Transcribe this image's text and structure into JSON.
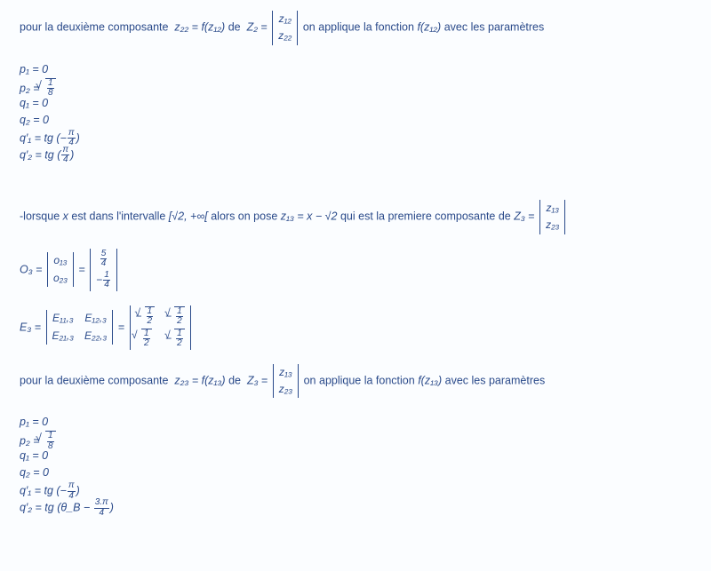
{
  "block1": {
    "intro_a": "pour la deuxième composante",
    "eq_comp": "z₂₂ = f(z₁₂)",
    "intro_b": "de",
    "Zname": "Z₂",
    "Zrows": [
      "z₁₂",
      "z₂₂"
    ],
    "intro_c": "on applique la fonction",
    "fcall": "f(z₁₂)",
    "intro_d": "avec les paramètres"
  },
  "params1": {
    "p1": "p₁ = 0",
    "p2_lhs": "p₂ =",
    "p2_frac": {
      "n": "1",
      "d": "8"
    },
    "q1": "q₁ = 0",
    "q2": "q₂ = 0",
    "q1p_lhs": "q′₁ = tg",
    "q1p_frac": {
      "neg": true,
      "n": "π",
      "d": "4"
    },
    "q2p_lhs": "q′₂ = tg",
    "q2p_frac": {
      "neg": false,
      "n": "π",
      "d": "4"
    }
  },
  "block2": {
    "intro_a": "-lorsque",
    "xvar": "x",
    "intro_b": "est dans l'intervalle",
    "interval_l": "√2, +∞",
    "intro_c": "alors on pose",
    "eq_z13": "z₁₃ = x − √2",
    "intro_d": "qui est la premiere composante de",
    "Zname": "Z₃",
    "Zrows": [
      "z₁₃",
      "z₂₃"
    ]
  },
  "O3": {
    "label": "O₃",
    "symrows": [
      "o₁₃",
      "o₂₃"
    ],
    "valrows_frac": [
      {
        "n": "5",
        "d": "4"
      },
      {
        "neg": true,
        "n": "1",
        "d": "4"
      }
    ]
  },
  "E3": {
    "label": "E₃",
    "symrows": [
      [
        "E₁₁,₃",
        "E₁₂,₃"
      ],
      [
        "E₂₁,₃",
        "E₂₂,₃"
      ]
    ],
    "valrows": [
      [
        {
          "neg": true,
          "n": "1",
          "d": "2"
        },
        {
          "neg": true,
          "n": "1",
          "d": "2"
        }
      ],
      [
        {
          "neg": false,
          "n": "1",
          "d": "2"
        },
        {
          "neg": true,
          "n": "1",
          "d": "2"
        }
      ]
    ]
  },
  "block3": {
    "intro_a": "pour la deuxième composante",
    "eq_comp": "z₂₃ = f(z₁₃)",
    "intro_b": "de",
    "Zname": "Z₃",
    "Zrows": [
      "z₁₃",
      "z₂₃"
    ],
    "intro_c": "on applique la fonction",
    "fcall": "f(z₁₃)",
    "intro_d": "avec les paramètres"
  },
  "params2": {
    "p1": "p₁ = 0",
    "p2_lhs": "p₂ =",
    "p2_frac": {
      "n": "1",
      "d": "8"
    },
    "q1": "q₁ = 0",
    "q2": "q₂ = 0",
    "q1p_lhs": "q′₁ = tg",
    "q1p_frac": {
      "neg": true,
      "n": "π",
      "d": "4"
    },
    "q2p_lhs": "q′₂ = tg",
    "q2p_arg": "θ_B −",
    "q2p_frac": {
      "n": "3.π",
      "d": "4"
    }
  },
  "style": {
    "text_color": "#2a4a8a",
    "background": "#fbfdff",
    "font_family": "Verdana",
    "base_fontsize": 12.5,
    "sub_fontsize": 9,
    "frac_fontsize": 10
  }
}
